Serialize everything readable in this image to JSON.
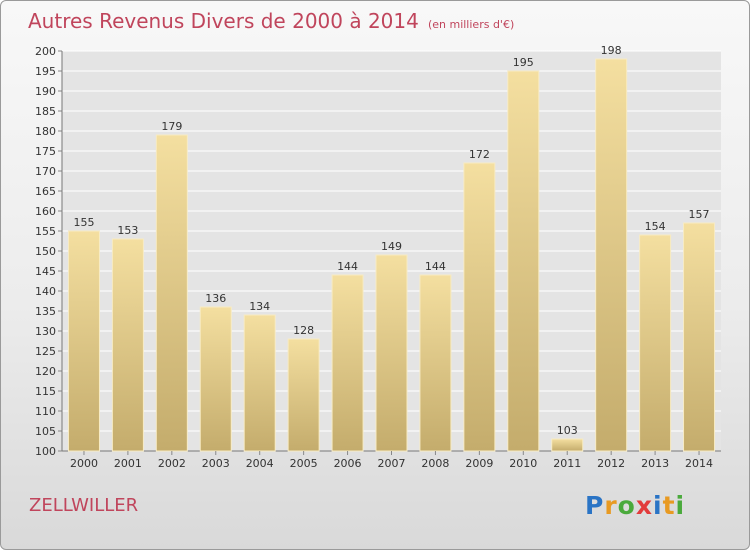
{
  "title": "Autres Revenus Divers de 2000 à 2014",
  "subtitle": "(en milliers d'€)",
  "commune": "ZELLWILLER",
  "brand": {
    "letters": [
      "P",
      "r",
      "o",
      "x",
      "i",
      "t",
      "i"
    ],
    "colors": [
      "#2a74c5",
      "#e89a22",
      "#4aaa3c",
      "#e23b3b",
      "#2a74c5",
      "#e89a22",
      "#4aaa3c"
    ]
  },
  "colors": {
    "title": "#c0455c",
    "bar_top": "#f4dfa0",
    "bar_bottom": "#c4ac6c",
    "grid": "#ffffff"
  },
  "chart_data": {
    "type": "bar",
    "categories": [
      "2000",
      "2001",
      "2002",
      "2003",
      "2004",
      "2005",
      "2006",
      "2007",
      "2008",
      "2009",
      "2010",
      "2011",
      "2012",
      "2013",
      "2014"
    ],
    "values": [
      155,
      153,
      179,
      136,
      134,
      128,
      144,
      149,
      144,
      172,
      195,
      103,
      198,
      154,
      157
    ],
    "ylim": [
      100,
      200
    ],
    "ytick_step": 5,
    "grid": true,
    "data_labels": true
  }
}
